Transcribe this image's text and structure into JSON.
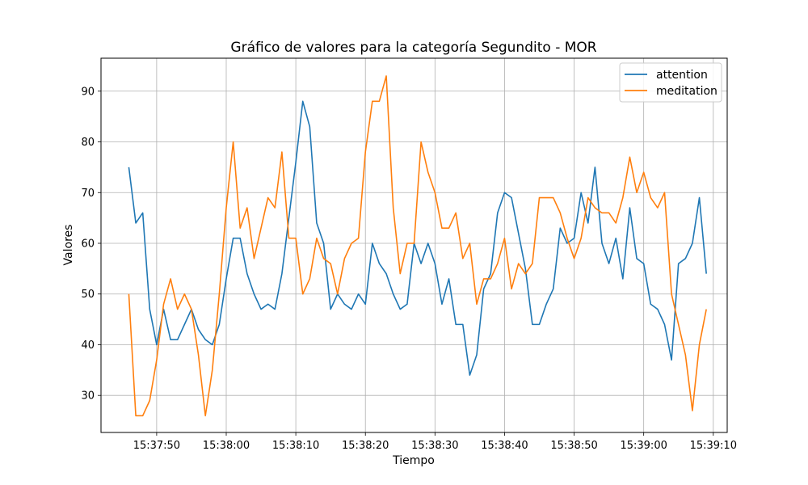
{
  "chart_data": {
    "type": "line",
    "title": "Gráfico de valores para la categoría Segundito - MOR",
    "xlabel": "Tiempo",
    "ylabel": "Valores",
    "x_start": "15:37:46",
    "x_step_seconds": 1,
    "xlim": [
      "15:37:42",
      "15:39:12"
    ],
    "ylim": [
      22.7,
      96.5
    ],
    "x_ticks": [
      "15:37:50",
      "15:38:00",
      "15:38:10",
      "15:38:20",
      "15:38:30",
      "15:38:40",
      "15:38:50",
      "15:39:00",
      "15:39:10"
    ],
    "y_ticks": [
      30,
      40,
      50,
      60,
      70,
      80,
      90
    ],
    "grid": true,
    "legend_position": "top-right",
    "series": [
      {
        "name": "attention",
        "color": "#1f77b4",
        "values": [
          75,
          64,
          66,
          47,
          40,
          47,
          41,
          41,
          44,
          47,
          43,
          41,
          40,
          44,
          53,
          61,
          61,
          54,
          50,
          47,
          48,
          47,
          54,
          65,
          76,
          88,
          83,
          64,
          60,
          47,
          50,
          48,
          47,
          50,
          48,
          60,
          56,
          54,
          50,
          47,
          48,
          60,
          56,
          60,
          56,
          48,
          53,
          44,
          44,
          34,
          38,
          51,
          54,
          66,
          70,
          69,
          62,
          55,
          44,
          44,
          48,
          51,
          63,
          60,
          61,
          70,
          64,
          75,
          60,
          56,
          61,
          53,
          67,
          57,
          56,
          48,
          47,
          44,
          37,
          56,
          57,
          60,
          69,
          54
        ]
      },
      {
        "name": "meditation",
        "color": "#ff7f0e",
        "values": [
          50,
          26,
          26,
          29,
          37,
          48,
          53,
          47,
          50,
          47,
          38,
          26,
          35,
          50,
          67,
          80,
          63,
          67,
          57,
          63,
          69,
          67,
          78,
          61,
          61,
          50,
          53,
          61,
          57,
          56,
          50,
          57,
          60,
          61,
          78,
          88,
          88,
          93,
          67,
          54,
          60,
          60,
          80,
          74,
          70,
          63,
          63,
          66,
          57,
          60,
          48,
          53,
          53,
          56,
          61,
          51,
          56,
          54,
          56,
          69,
          69,
          69,
          66,
          61,
          57,
          61,
          69,
          67,
          66,
          66,
          64,
          69,
          77,
          70,
          74,
          69,
          67,
          70,
          50,
          44,
          38,
          27,
          40,
          47
        ]
      }
    ]
  }
}
